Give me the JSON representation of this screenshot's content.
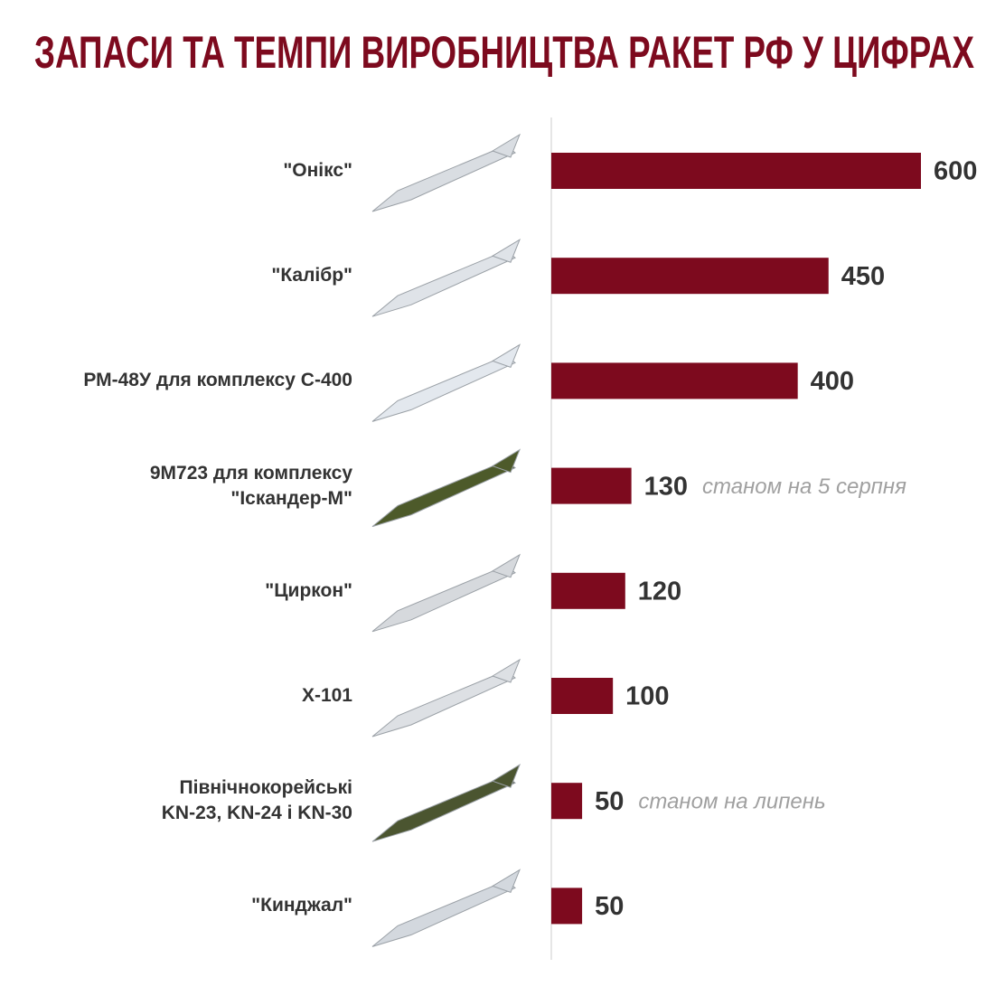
{
  "chart_data": {
    "type": "bar",
    "title": "ЗАПАСИ ТА ТЕМПИ ВИРОБНИЦТВА РАКЕТ РФ У ЦИФРАХ",
    "categories": [
      "\"Онікс\"",
      "\"Калібр\"",
      "РМ-48У для комплексу С-400",
      "9М723 для комплексу\n\"Іскандер-М\"",
      "\"Циркон\"",
      "Х-101",
      "Північнокорейські\nKN-23, KN-24 і KN-30",
      "\"Кинджал\""
    ],
    "values": [
      600,
      450,
      400,
      130,
      120,
      100,
      50,
      50
    ],
    "notes": [
      null,
      null,
      null,
      "станом на 5 серпня",
      null,
      null,
      "станом на липень",
      null
    ],
    "color": "#7d0a1e"
  }
}
